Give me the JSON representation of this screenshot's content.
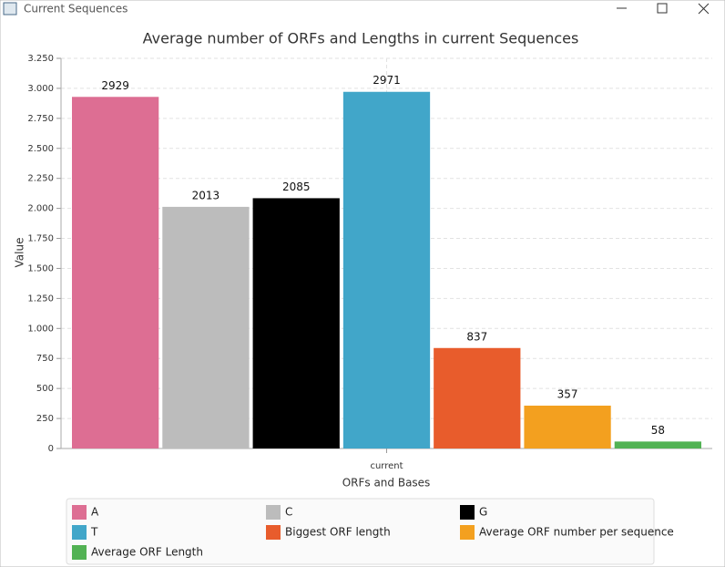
{
  "window": {
    "title": "Current Sequences"
  },
  "chart_data": {
    "type": "bar",
    "title": "Average number of ORFs and Lengths in current Sequences",
    "x_label": "ORFs and Bases",
    "y_label": "Value",
    "categories": [
      "current"
    ],
    "series": [
      {
        "name": "A",
        "color": "#dd6e93",
        "values": [
          2929
        ]
      },
      {
        "name": "C",
        "color": "#bcbcbc",
        "values": [
          2013
        ]
      },
      {
        "name": "G",
        "color": "#000000",
        "values": [
          2085
        ]
      },
      {
        "name": "T",
        "color": "#41a6c9",
        "values": [
          2971
        ]
      },
      {
        "name": "Biggest ORF length",
        "color": "#e85c2c",
        "values": [
          837
        ]
      },
      {
        "name": "Average ORF number per sequence",
        "color": "#f3a01f",
        "values": [
          357
        ]
      },
      {
        "name": "Average ORF Length",
        "color": "#52b254",
        "values": [
          58
        ]
      }
    ],
    "ylim": [
      0,
      3250
    ],
    "yticks": [
      0,
      250,
      500,
      750,
      {
        "value": 1000,
        "label": "1.000"
      },
      {
        "value": 1250,
        "label": "1.250"
      },
      {
        "value": 1500,
        "label": "1.500"
      },
      {
        "value": 1750,
        "label": "1.750"
      },
      {
        "value": 2000,
        "label": "2.000"
      },
      {
        "value": 2250,
        "label": "2.250"
      },
      {
        "value": 2500,
        "label": "2.500"
      },
      {
        "value": 2750,
        "label": "2.750"
      },
      {
        "value": 3000,
        "label": "3.000"
      },
      {
        "value": 3250,
        "label": "3.250"
      }
    ],
    "grid": true,
    "legend": "bottom"
  }
}
